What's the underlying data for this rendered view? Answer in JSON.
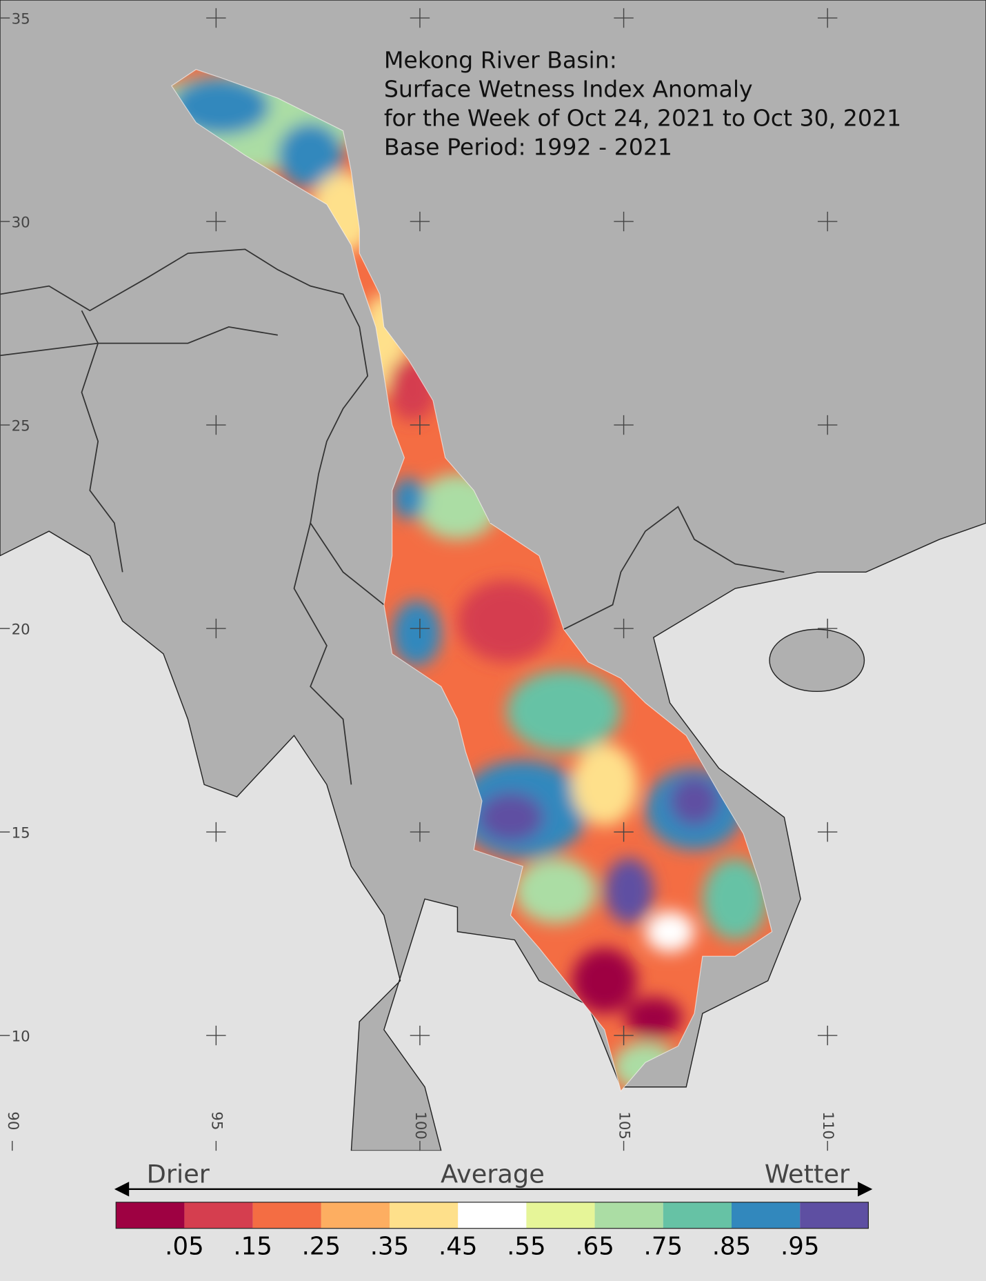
{
  "title_lines": [
    "Mekong River Basin:",
    "Surface Wetness Index Anomaly",
    "for the Week of Oct 24, 2021 to Oct 30, 2021",
    "Base Period: 1992 - 2021"
  ],
  "map": {
    "lat_ticks": [
      35,
      30,
      25,
      20,
      15,
      10
    ],
    "lon_ticks": [
      90,
      95,
      100,
      105,
      110
    ]
  },
  "legend": {
    "left": "Drier",
    "center": "Average",
    "right": "Wetter",
    "colors": [
      "#9e0142",
      "#d53e4f",
      "#f46d43",
      "#fdae61",
      "#fee08b",
      "#ffffff",
      "#e6f598",
      "#abdda4",
      "#66c2a5",
      "#3288bd",
      "#5e4fa2"
    ],
    "tick_labels": [
      ".05",
      ".15",
      ".25",
      ".35",
      ".45",
      ".55",
      ".65",
      ".75",
      ".85",
      ".95"
    ]
  }
}
